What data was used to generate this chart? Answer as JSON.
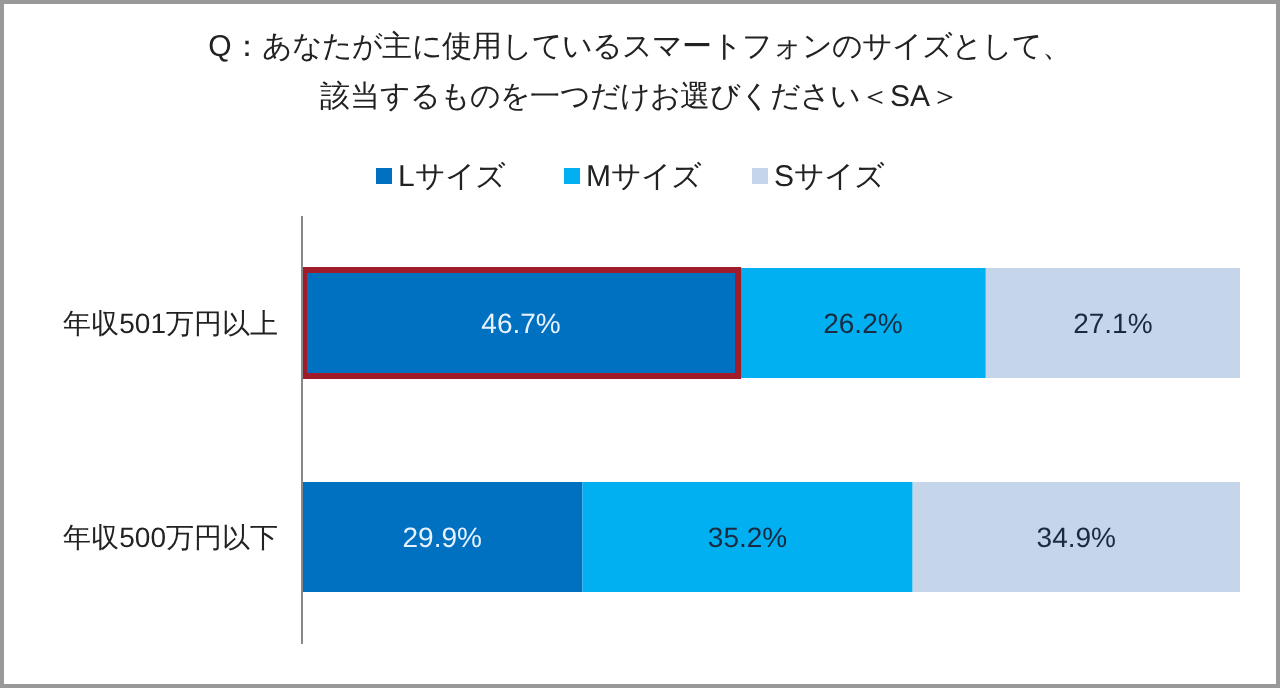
{
  "chart_data": {
    "type": "bar",
    "orientation": "horizontal",
    "stacked": true,
    "title": "Q：あなたが主に使用しているスマートフォンのサイズとして、該当するものを一つだけお選びください＜SA＞",
    "categories": [
      "年収501万円以上",
      "年収500万円以下"
    ],
    "xlim": [
      0,
      100
    ],
    "legend": "top",
    "series": [
      {
        "name": "Lサイズ",
        "color": "#0070c0",
        "values": [
          46.7,
          29.9
        ],
        "value_labels": [
          "46.7%",
          "29.9%"
        ]
      },
      {
        "name": "Mサイズ",
        "color": "#00b0f0",
        "values": [
          26.2,
          35.2
        ],
        "value_labels": [
          "26.2%",
          "35.2%"
        ]
      },
      {
        "name": "Sサイズ",
        "color": "#c5d5ea",
        "values": [
          27.1,
          34.9
        ],
        "value_labels": [
          "27.1%",
          "34.9%"
        ]
      }
    ]
  }
}
